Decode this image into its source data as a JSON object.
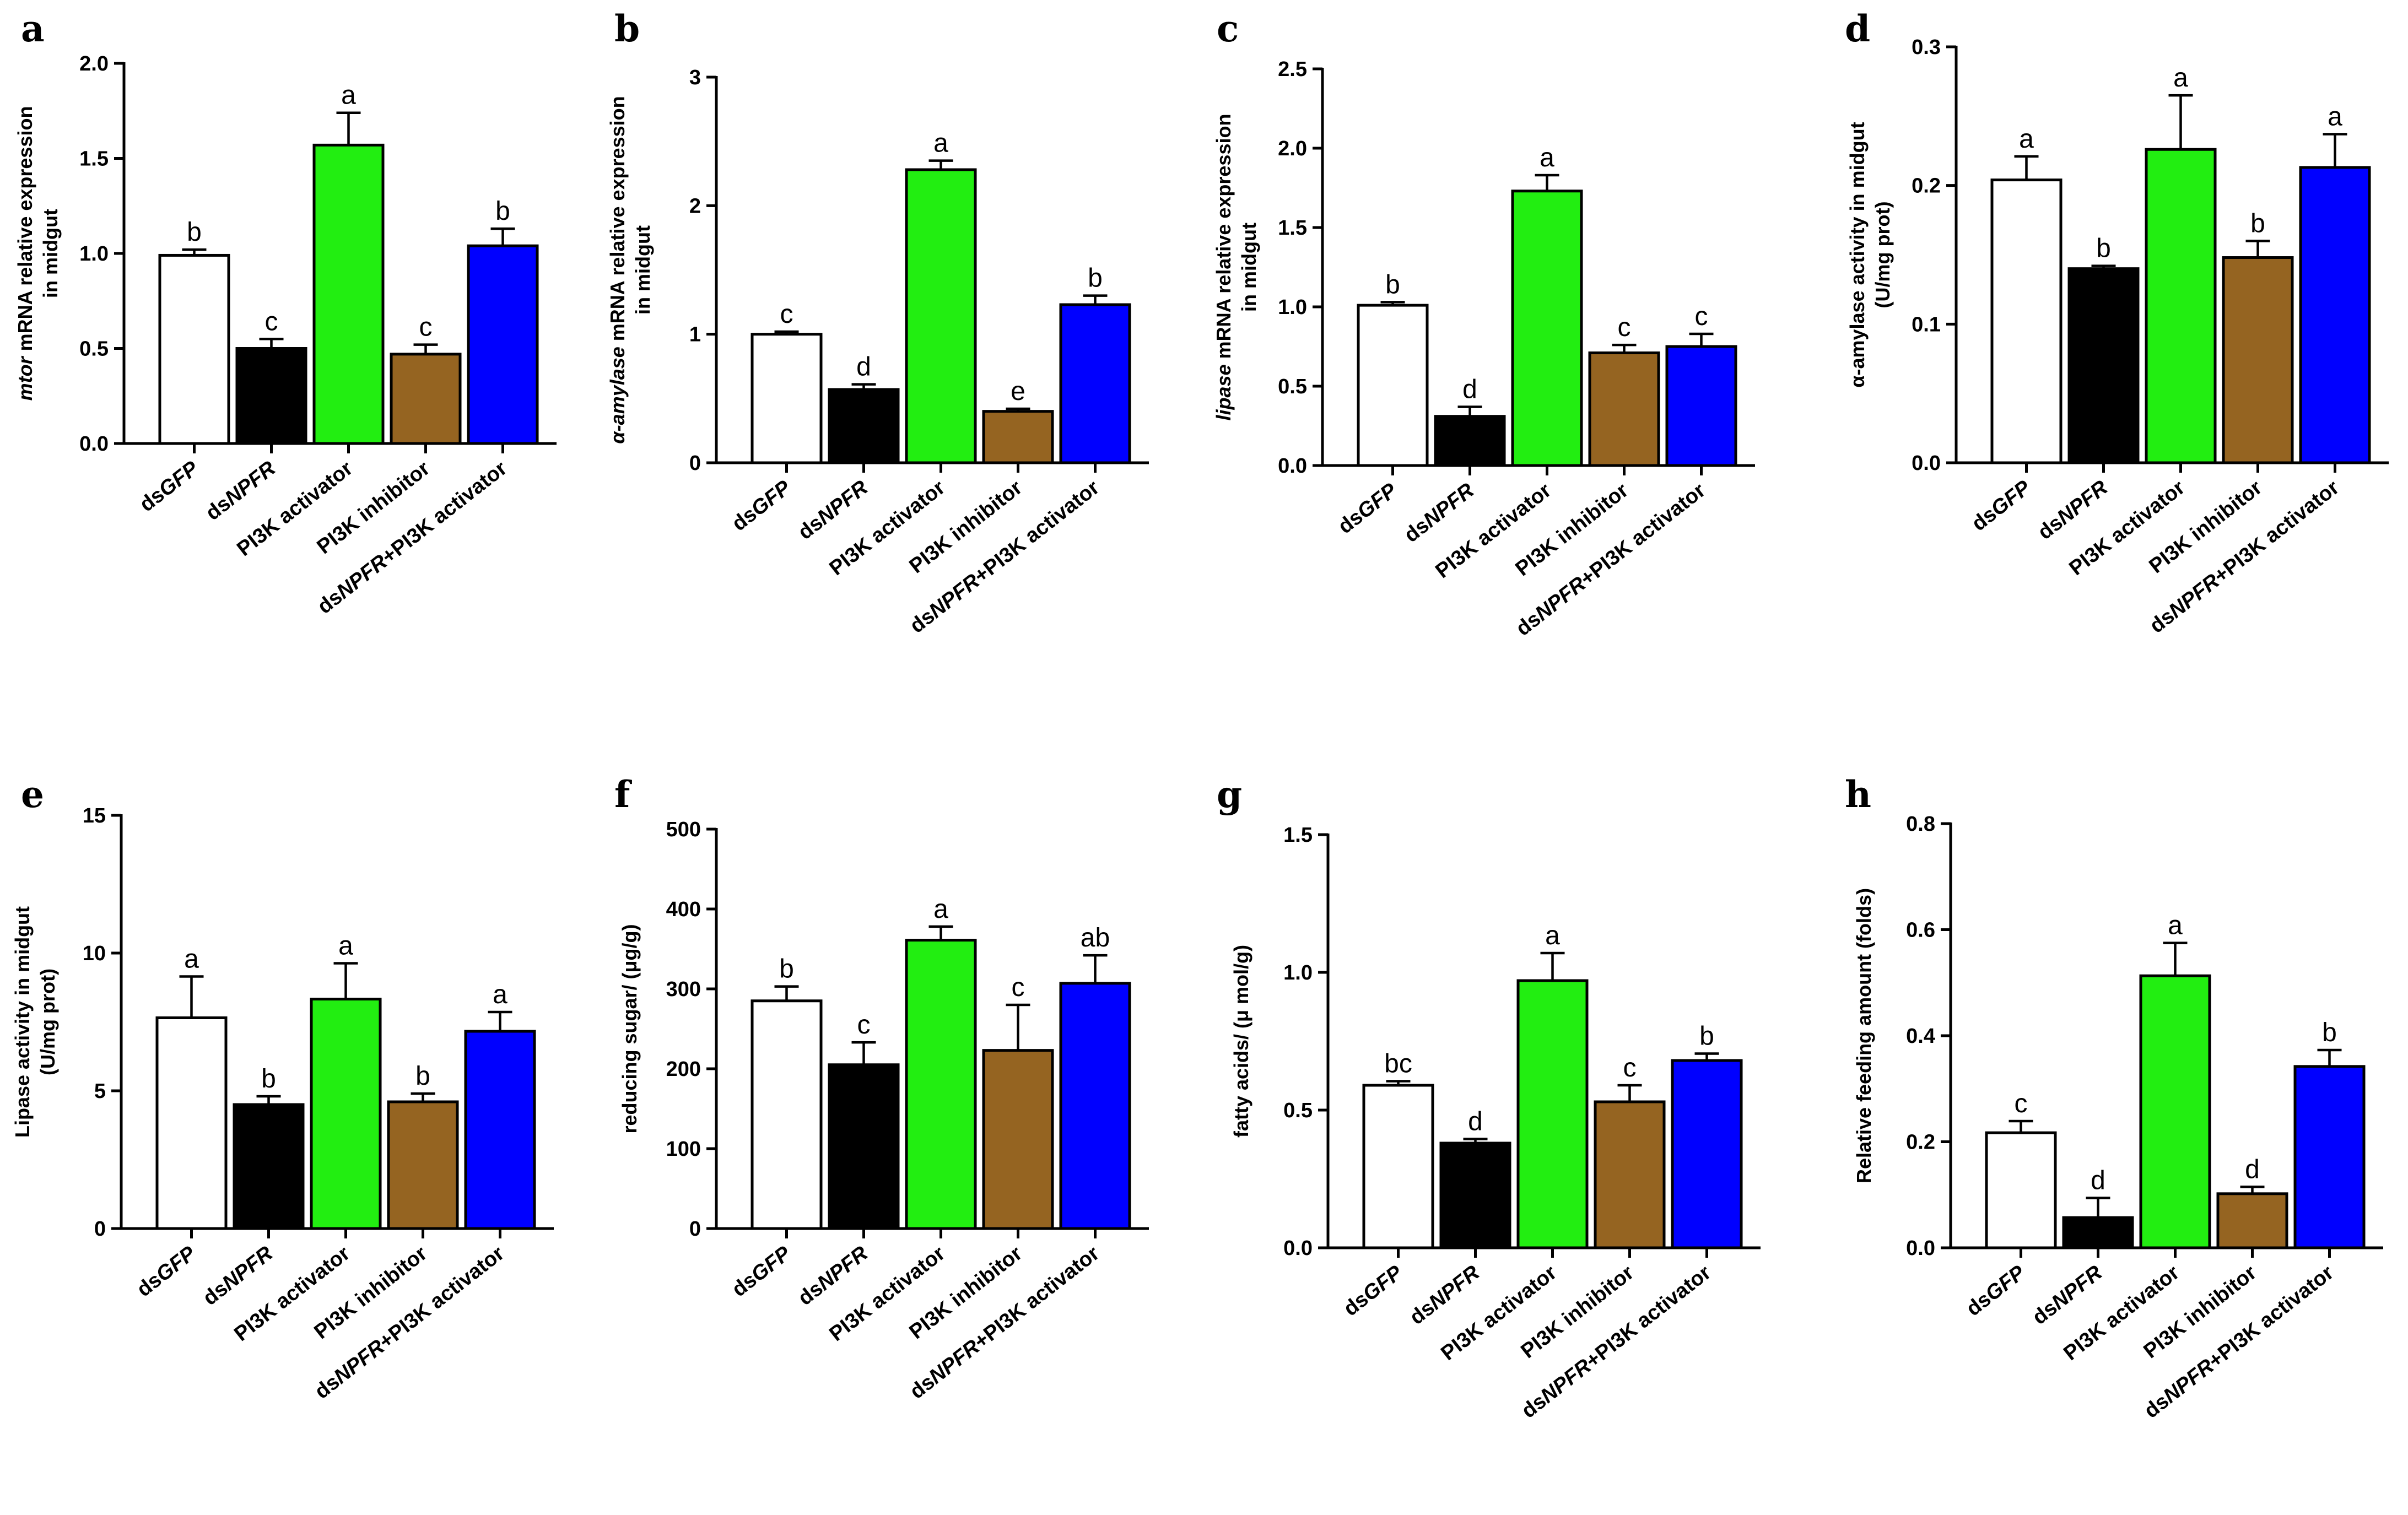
{
  "categories": [
    {
      "prefix": "ds",
      "italic": "GFP",
      "suffix": ""
    },
    {
      "prefix": "ds",
      "italic": "NPFR",
      "suffix": ""
    },
    {
      "prefix": "PI3K activator",
      "italic": "",
      "suffix": ""
    },
    {
      "prefix": "PI3K inhibitor",
      "italic": "",
      "suffix": ""
    },
    {
      "prefix": "ds",
      "italic": "NPFR",
      "suffix": "+PI3K activator"
    }
  ],
  "bar_colors": [
    "#ffffff",
    "#000000",
    "#22ee11",
    "#956421",
    "#0000ff"
  ],
  "chart_data": [
    {
      "panel": "a",
      "type": "bar",
      "ylabel_lines": [
        [
          {
            "t": "mtor",
            "i": true
          },
          {
            "t": " mRNA relative expression",
            "i": false
          }
        ],
        [
          {
            "t": "in midgut",
            "i": false
          }
        ]
      ],
      "ylim": [
        0,
        2.0
      ],
      "ticks": [
        0,
        0.5,
        1.0,
        1.5,
        2.0
      ],
      "tick_labels": [
        "0.0",
        "0.5",
        "1.0",
        "1.5",
        "2.0"
      ],
      "values": [
        0.99,
        0.5,
        1.57,
        0.47,
        1.04
      ],
      "errors": [
        0.03,
        0.05,
        0.17,
        0.05,
        0.09
      ],
      "letters": [
        "b",
        "c",
        "a",
        "c",
        "b"
      ]
    },
    {
      "panel": "b",
      "type": "bar",
      "ylabel_lines": [
        [
          {
            "t": "α-amylase",
            "i": true
          },
          {
            "t": " mRNA relative expression",
            "i": false
          }
        ],
        [
          {
            "t": "in midgut",
            "i": false
          }
        ]
      ],
      "ylim": [
        0,
        3
      ],
      "ticks": [
        0,
        1,
        2,
        3
      ],
      "tick_labels": [
        "0",
        "1",
        "2",
        "3"
      ],
      "values": [
        1.0,
        0.57,
        2.28,
        0.4,
        1.23
      ],
      "errors": [
        0.02,
        0.04,
        0.07,
        0.02,
        0.07
      ],
      "letters": [
        "c",
        "d",
        "a",
        "e",
        "b"
      ]
    },
    {
      "panel": "c",
      "type": "bar",
      "ylabel_lines": [
        [
          {
            "t": "lipase",
            "i": true
          },
          {
            "t": " mRNA relative expression",
            "i": false
          }
        ],
        [
          {
            "t": "in midgut",
            "i": false
          }
        ]
      ],
      "ylim": [
        0,
        2.5
      ],
      "ticks": [
        0,
        0.5,
        1.0,
        1.5,
        2.0,
        2.5
      ],
      "tick_labels": [
        "0.0",
        "0.5",
        "1.0",
        "1.5",
        "2.0",
        "2.5"
      ],
      "values": [
        1.01,
        0.31,
        1.73,
        0.71,
        0.75
      ],
      "errors": [
        0.02,
        0.06,
        0.1,
        0.05,
        0.08
      ],
      "letters": [
        "b",
        "d",
        "a",
        "c",
        "c"
      ]
    },
    {
      "panel": "d",
      "type": "bar",
      "ylabel_lines": [
        [
          {
            "t": "α-amylase  activity in midgut",
            "i": false
          }
        ],
        [
          {
            "t": "(U/mg prot)",
            "i": false
          }
        ]
      ],
      "ylim": [
        0,
        0.3
      ],
      "ticks": [
        0,
        0.1,
        0.2,
        0.3
      ],
      "tick_labels": [
        "0.0",
        "0.1",
        "0.2",
        "0.3"
      ],
      "values": [
        0.204,
        0.14,
        0.226,
        0.148,
        0.213
      ],
      "errors": [
        0.017,
        0.002,
        0.039,
        0.012,
        0.024
      ],
      "letters": [
        "a",
        "b",
        "a",
        "b",
        "a"
      ]
    },
    {
      "panel": "e",
      "type": "bar",
      "ylabel_lines": [
        [
          {
            "t": "Lipase  activity in midgut",
            "i": false
          }
        ],
        [
          {
            "t": "(U/mg prot)",
            "i": false
          }
        ]
      ],
      "ylim": [
        0,
        15
      ],
      "ticks": [
        0,
        5,
        10,
        15
      ],
      "tick_labels": [
        "0",
        "5",
        "10",
        "15"
      ],
      "values": [
        7.65,
        4.5,
        8.33,
        4.6,
        7.16
      ],
      "errors": [
        1.5,
        0.3,
        1.3,
        0.3,
        0.7
      ],
      "letters": [
        "a",
        "b",
        "a",
        "b",
        "a"
      ]
    },
    {
      "panel": "f",
      "type": "bar",
      "ylabel_lines": [
        [
          {
            "t": "reducing sugar/ (μg/g)",
            "i": false
          }
        ]
      ],
      "ylim": [
        0,
        500
      ],
      "ticks": [
        0,
        100,
        200,
        300,
        400,
        500
      ],
      "tick_labels": [
        "0",
        "100",
        "200",
        "300",
        "400",
        "500"
      ],
      "values": [
        285,
        205,
        361,
        223,
        307
      ],
      "errors": [
        18,
        28,
        17,
        57,
        35
      ],
      "letters": [
        "b",
        "c",
        "a",
        "c",
        "ab"
      ]
    },
    {
      "panel": "g",
      "type": "bar",
      "ylabel_lines": [
        [
          {
            "t": "fatty acids/ (μ mol/g)",
            "i": false
          }
        ]
      ],
      "ylim": [
        0,
        1.5
      ],
      "ticks": [
        0,
        0.5,
        1.0,
        1.5
      ],
      "tick_labels": [
        "0.0",
        "0.5",
        "1.0",
        "1.5"
      ],
      "values": [
        0.59,
        0.38,
        0.97,
        0.53,
        0.68
      ],
      "errors": [
        0.015,
        0.015,
        0.1,
        0.06,
        0.025
      ],
      "letters": [
        "bc",
        "d",
        "a",
        "c",
        "b"
      ]
    },
    {
      "panel": "h",
      "type": "bar",
      "ylabel_lines": [
        [
          {
            "t": "Relative feeding amount (folds)",
            "i": false
          }
        ]
      ],
      "ylim": [
        0,
        0.8
      ],
      "ticks": [
        0,
        0.2,
        0.4,
        0.6,
        0.8
      ],
      "tick_labels": [
        "0.0",
        "0.2",
        "0.4",
        "0.6",
        "0.8"
      ],
      "values": [
        0.217,
        0.057,
        0.513,
        0.102,
        0.342
      ],
      "errors": [
        0.022,
        0.037,
        0.062,
        0.013,
        0.031
      ],
      "letters": [
        "c",
        "d",
        "a",
        "d",
        "b"
      ]
    }
  ]
}
